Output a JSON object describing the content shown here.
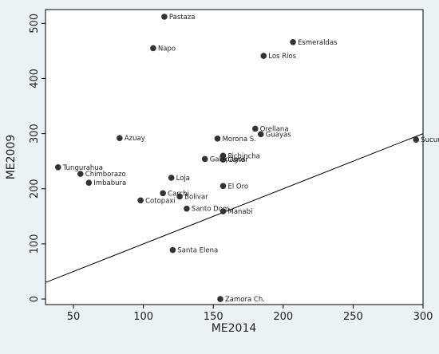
{
  "chart_data": {
    "type": "scatter",
    "title": "",
    "xlabel": "ME2014",
    "ylabel": "ME2009",
    "xlim": [
      30,
      300
    ],
    "ylim": [
      -10,
      525
    ],
    "x_ticks": [
      50,
      100,
      150,
      200,
      250,
      300
    ],
    "y_ticks": [
      0,
      100,
      200,
      300,
      400,
      500
    ],
    "grid": false,
    "reference_line": "y = x",
    "colors": {
      "background": "#eaf2f3",
      "plot_background": "#ffffff",
      "point": "#333333",
      "line": "#000000"
    },
    "points": [
      {
        "label": "Pastaza",
        "x": 115,
        "y": 512
      },
      {
        "label": "Napo",
        "x": 107,
        "y": 455
      },
      {
        "label": "Esmeraldas",
        "x": 207,
        "y": 466
      },
      {
        "label": "Los Rios",
        "x": 186,
        "y": 441
      },
      {
        "label": "Orellana",
        "x": 180,
        "y": 309
      },
      {
        "label": "Guayas",
        "x": 184,
        "y": 299
      },
      {
        "label": "Sucum",
        "x": 295,
        "y": 289
      },
      {
        "label": "Azuay",
        "x": 83,
        "y": 292
      },
      {
        "label": "Morona S.",
        "x": 153,
        "y": 291
      },
      {
        "label": "Pichincha",
        "x": 157,
        "y": 260
      },
      {
        "label": "Canar",
        "x": 157,
        "y": 253
      },
      {
        "label": "Galapagos",
        "x": 144,
        "y": 254
      },
      {
        "label": "Tungurahua",
        "x": 39,
        "y": 239
      },
      {
        "label": "Chimborazo",
        "x": 55,
        "y": 227
      },
      {
        "label": "Imbabura",
        "x": 61,
        "y": 211
      },
      {
        "label": "Loja",
        "x": 120,
        "y": 220
      },
      {
        "label": "El Oro",
        "x": 157,
        "y": 205
      },
      {
        "label": "Carchi",
        "x": 114,
        "y": 192
      },
      {
        "label": "Bolivar",
        "x": 126,
        "y": 186
      },
      {
        "label": "Cotopaxi",
        "x": 98,
        "y": 179
      },
      {
        "label": "Santo Dom.",
        "x": 131,
        "y": 164
      },
      {
        "label": "Manabi",
        "x": 157,
        "y": 159
      },
      {
        "label": "Santa Elena",
        "x": 121,
        "y": 89
      },
      {
        "label": "Zamora Ch.",
        "x": 155,
        "y": 0
      }
    ]
  }
}
